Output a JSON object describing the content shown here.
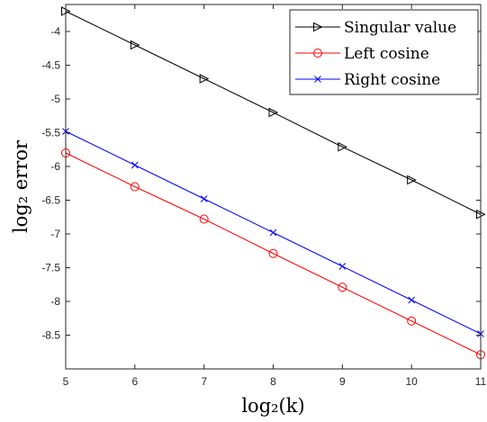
{
  "chart_data": {
    "type": "line",
    "xlabel": "log₂(k)",
    "ylabel": "log₂ error",
    "xlim": [
      5,
      11
    ],
    "ylim": [
      -9,
      -3.6
    ],
    "x_ticks": [
      5,
      6,
      7,
      8,
      9,
      10,
      11
    ],
    "y_ticks": [
      -8.5,
      -8,
      -7.5,
      -7,
      -6.5,
      -6,
      -5.5,
      -5,
      -4.5,
      -4
    ],
    "y_tick_labels": [
      "-8.5",
      "-8",
      "-7.5",
      "-7",
      "-6.5",
      "-6",
      "-5.5",
      "-5",
      "-4.5",
      "-4"
    ],
    "grid": false,
    "legend_position": "top-right",
    "x": [
      5,
      6,
      7,
      8,
      9,
      10,
      11
    ],
    "series": [
      {
        "name": "Singular value",
        "color": "#000000",
        "marker": "triangle-right",
        "values": [
          -3.7,
          -4.2,
          -4.7,
          -5.2,
          -5.71,
          -6.2,
          -6.71
        ]
      },
      {
        "name": "Left cosine",
        "color": "#ff0000",
        "marker": "circle",
        "values": [
          -5.8,
          -6.3,
          -6.78,
          -7.29,
          -7.79,
          -8.29,
          -8.79
        ]
      },
      {
        "name": "Right cosine",
        "color": "#0000ff",
        "marker": "x",
        "values": [
          -5.48,
          -5.98,
          -6.48,
          -6.98,
          -7.48,
          -7.98,
          -8.48
        ]
      }
    ]
  }
}
